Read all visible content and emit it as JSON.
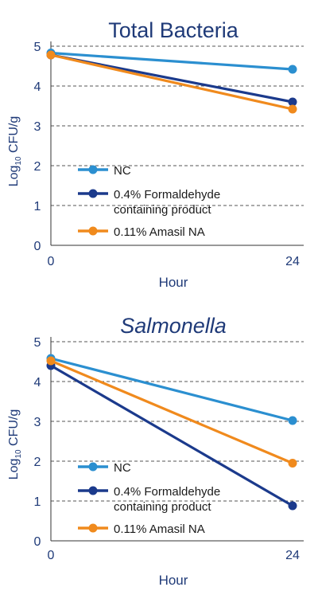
{
  "colors": {
    "title": "#1f3a78",
    "axis_text": "#1f3a78",
    "grid": "#555555",
    "nc": "#2b8fd0",
    "formaldehyde": "#1b3a8c",
    "amasil": "#f08a1d"
  },
  "chart_data": [
    {
      "type": "line",
      "title": "Total Bacteria",
      "title_italic": false,
      "xlabel": "Hour",
      "ylabel": "Log10 CFU/g",
      "x": [
        0,
        24
      ],
      "x_ticks": [
        "0",
        "24"
      ],
      "ylim": [
        0,
        5
      ],
      "y_ticks": [
        "0",
        "1",
        "2",
        "3",
        "4",
        "5"
      ],
      "grid": true,
      "legend_position": "bottom-left",
      "series": [
        {
          "name": "NC",
          "color_key": "nc",
          "values": [
            4.83,
            4.42
          ]
        },
        {
          "name": "0.4% Formaldehyde",
          "name_line2": "containing product",
          "color_key": "formaldehyde",
          "values": [
            4.78,
            3.6
          ]
        },
        {
          "name": "0.11% Amasil NA",
          "color_key": "amasil",
          "values": [
            4.78,
            3.42
          ]
        }
      ]
    },
    {
      "type": "line",
      "title": "Salmonella",
      "title_italic": true,
      "xlabel": "Hour",
      "ylabel": "Log10 CFU/g",
      "x": [
        0,
        24
      ],
      "x_ticks": [
        "0",
        "24"
      ],
      "ylim": [
        0,
        5
      ],
      "y_ticks": [
        "0",
        "1",
        "2",
        "3",
        "4",
        "5"
      ],
      "grid": true,
      "legend_position": "bottom-left",
      "series": [
        {
          "name": "NC",
          "color_key": "nc",
          "values": [
            4.58,
            3.02
          ]
        },
        {
          "name": "0.4% Formaldehyde",
          "name_line2": "containing product",
          "color_key": "formaldehyde",
          "values": [
            4.4,
            0.88
          ]
        },
        {
          "name": "0.11% Amasil NA",
          "color_key": "amasil",
          "values": [
            4.52,
            1.95
          ]
        }
      ]
    }
  ]
}
